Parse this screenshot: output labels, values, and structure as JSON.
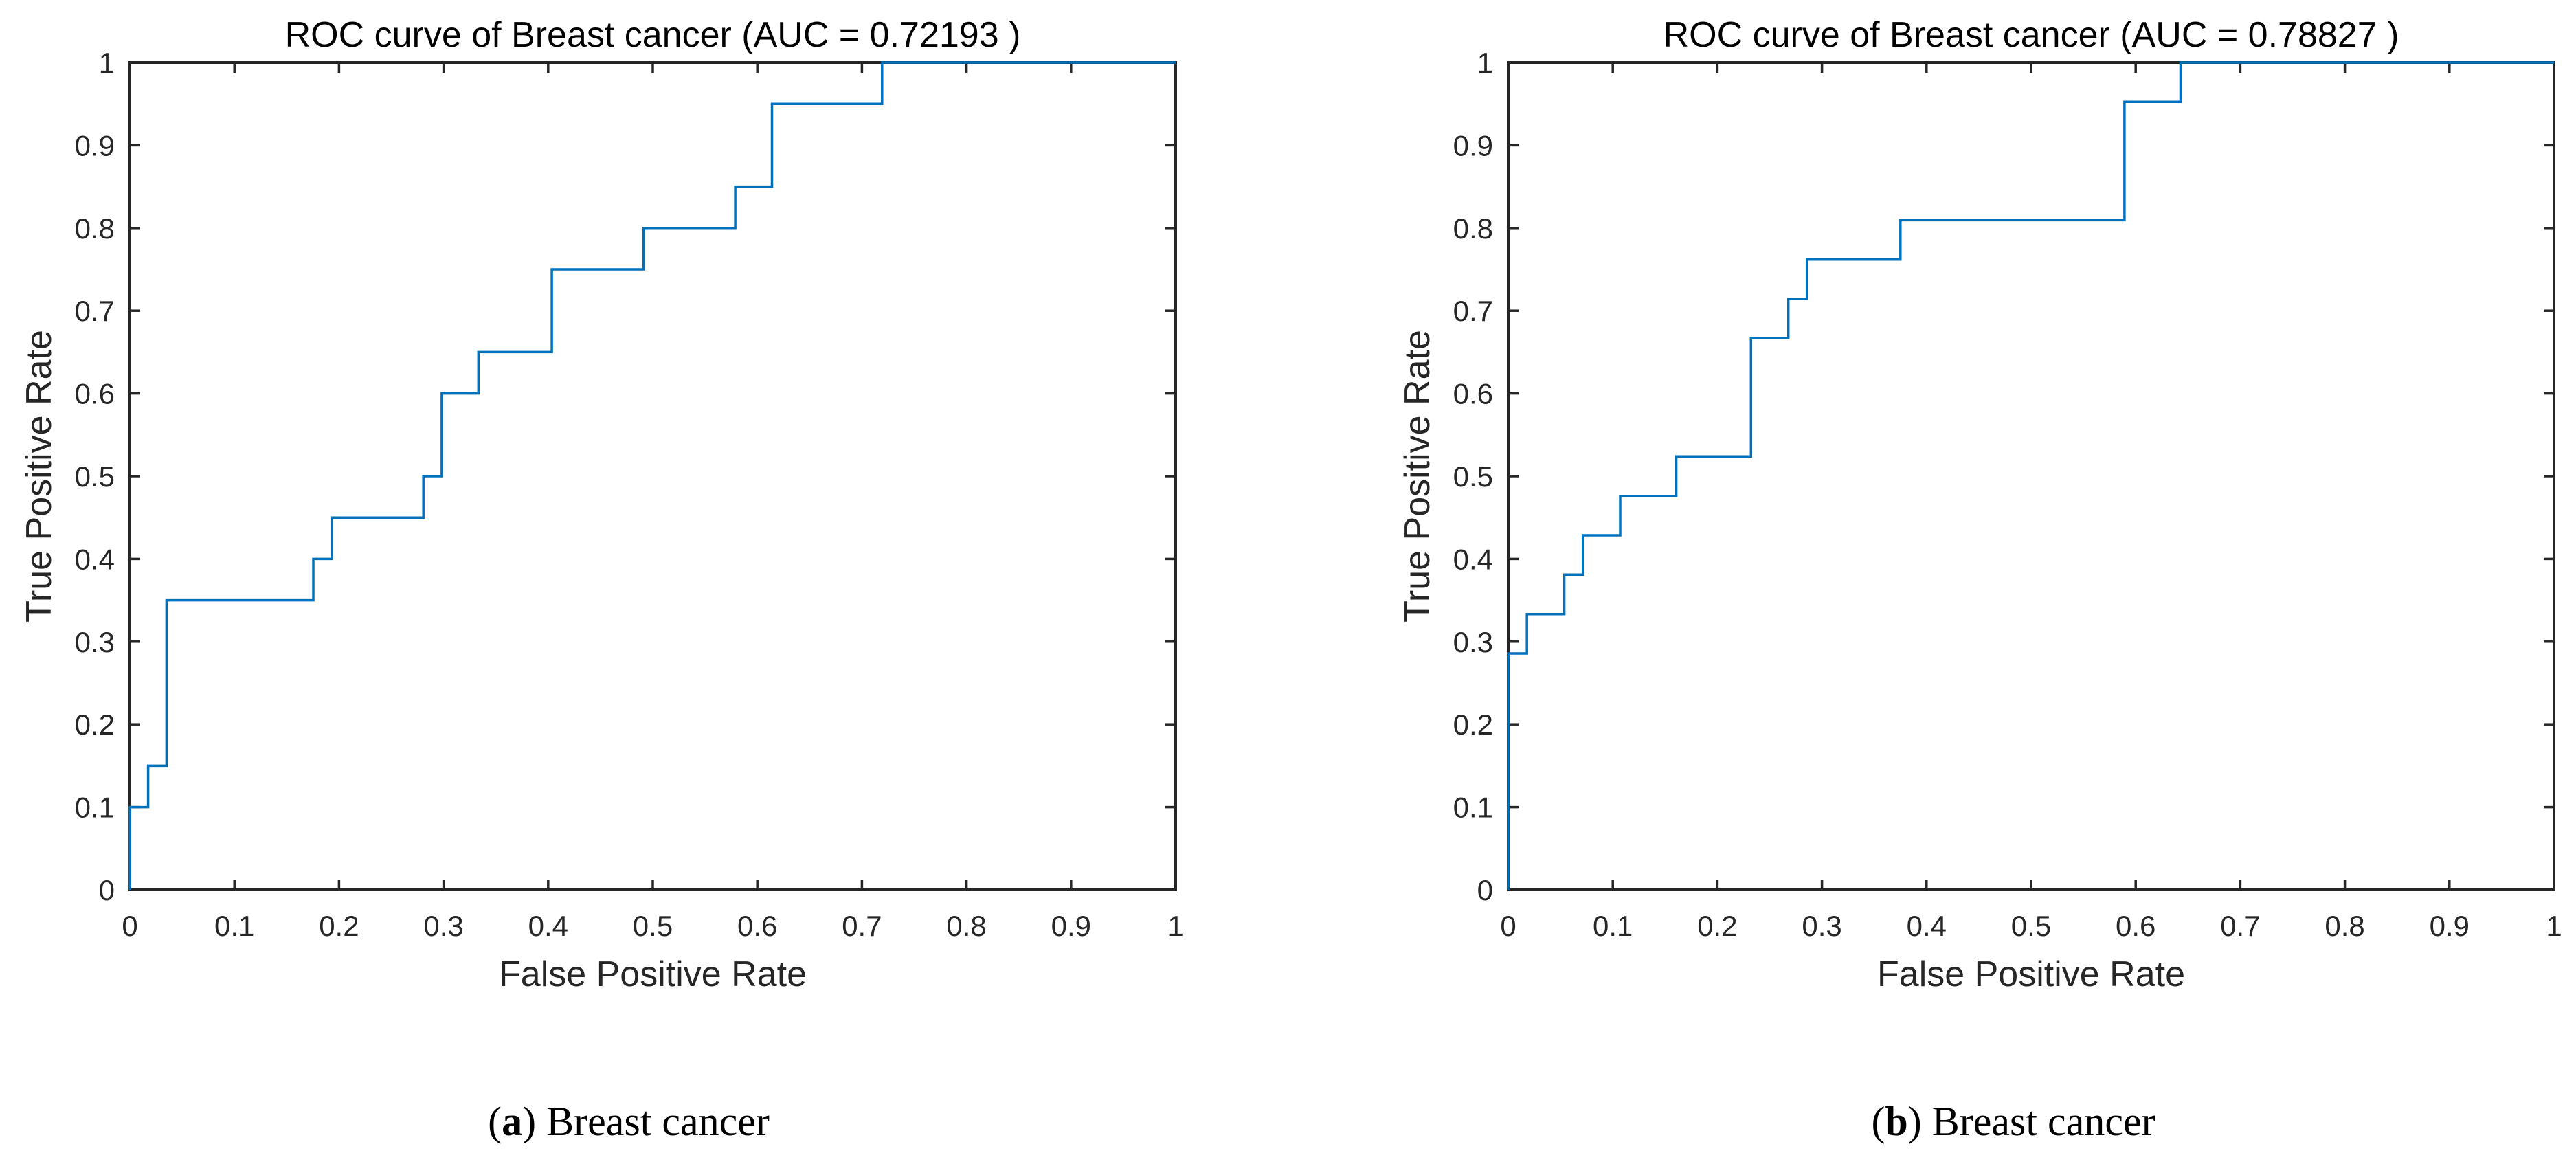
{
  "figure": {
    "background": "#ffffff",
    "curve_color": "#0072BD",
    "axis_color": "#262626",
    "text_color": "#000000"
  },
  "chart_data": [
    {
      "type": "line",
      "subtype": "roc-step-curve",
      "title": "ROC curve of Breast cancer (AUC = 0.72193 )",
      "auc": 0.72193,
      "xlabel": "False Positive Rate",
      "ylabel": "True Positive Rate",
      "xlim": [
        0,
        1
      ],
      "ylim": [
        0,
        1
      ],
      "grid": false,
      "legend": "none",
      "x_ticks": {
        "values": [
          0,
          0.1,
          0.2,
          0.3,
          0.4,
          0.5,
          0.6,
          0.7,
          0.8,
          0.9,
          1
        ],
        "labels": [
          "0",
          "0.1",
          "0.2",
          "0.3",
          "0.4",
          "0.5",
          "0.6",
          "0.7",
          "0.8",
          "0.9",
          "1"
        ]
      },
      "y_ticks": {
        "values": [
          0,
          0.1,
          0.2,
          0.3,
          0.4,
          0.5,
          0.6,
          0.7,
          0.8,
          0.9,
          1
        ],
        "labels": [
          "0",
          "0.1",
          "0.2",
          "0.3",
          "0.4",
          "0.5",
          "0.6",
          "0.7",
          "0.8",
          "0.9",
          "1"
        ]
      },
      "series": [
        {
          "name": "ROC curve",
          "x": [
            0,
            0,
            0.0175,
            0.0175,
            0.0351,
            0.0351,
            0.1754,
            0.1754,
            0.193,
            0.193,
            0.2807,
            0.2807,
            0.2982,
            0.2982,
            0.3333,
            0.3333,
            0.4035,
            0.4035,
            0.4912,
            0.4912,
            0.5789,
            0.5789,
            0.614,
            0.614,
            0.7193,
            0.7193,
            1
          ],
          "y": [
            0,
            0.1,
            0.1,
            0.15,
            0.15,
            0.35,
            0.35,
            0.4,
            0.4,
            0.45,
            0.45,
            0.5,
            0.5,
            0.6,
            0.6,
            0.65,
            0.65,
            0.75,
            0.75,
            0.8,
            0.8,
            0.85,
            0.85,
            0.95,
            0.95,
            1,
            1
          ]
        }
      ],
      "caption": {
        "open_paren": "(",
        "letter": "a",
        "rest": ") Breast cancer"
      }
    },
    {
      "type": "line",
      "subtype": "roc-step-curve",
      "title": "ROC curve of Breast cancer (AUC = 0.78827 )",
      "auc": 0.78827,
      "xlabel": "False Positive Rate",
      "ylabel": "True Positive Rate",
      "xlim": [
        0,
        1
      ],
      "ylim": [
        0,
        1
      ],
      "grid": false,
      "legend": "none",
      "x_ticks": {
        "values": [
          0,
          0.1,
          0.2,
          0.3,
          0.4,
          0.5,
          0.6,
          0.7,
          0.8,
          0.9,
          1
        ],
        "labels": [
          "0",
          "0.1",
          "0.2",
          "0.3",
          "0.4",
          "0.5",
          "0.6",
          "0.7",
          "0.8",
          "0.9",
          "1"
        ]
      },
      "y_ticks": {
        "values": [
          0,
          0.1,
          0.2,
          0.3,
          0.4,
          0.5,
          0.6,
          0.7,
          0.8,
          0.9,
          1
        ],
        "labels": [
          "0",
          "0.1",
          "0.2",
          "0.3",
          "0.4",
          "0.5",
          "0.6",
          "0.7",
          "0.8",
          "0.9",
          "1"
        ]
      },
      "series": [
        {
          "name": "ROC curve",
          "x": [
            0,
            0,
            0.0179,
            0.0179,
            0.0536,
            0.0536,
            0.0714,
            0.0714,
            0.1071,
            0.1071,
            0.1607,
            0.1607,
            0.2321,
            0.2321,
            0.2679,
            0.2679,
            0.2857,
            0.2857,
            0.375,
            0.375,
            0.5893,
            0.5893,
            0.6429,
            0.6429,
            1
          ],
          "y": [
            0,
            0.2857,
            0.2857,
            0.3333,
            0.3333,
            0.381,
            0.381,
            0.4286,
            0.4286,
            0.4762,
            0.4762,
            0.5238,
            0.5238,
            0.6667,
            0.6667,
            0.7143,
            0.7143,
            0.7619,
            0.7619,
            0.8095,
            0.8095,
            0.9524,
            0.9524,
            1,
            1
          ]
        }
      ],
      "caption": {
        "open_paren": "(",
        "letter": "b",
        "rest": ") Breast cancer"
      }
    }
  ]
}
